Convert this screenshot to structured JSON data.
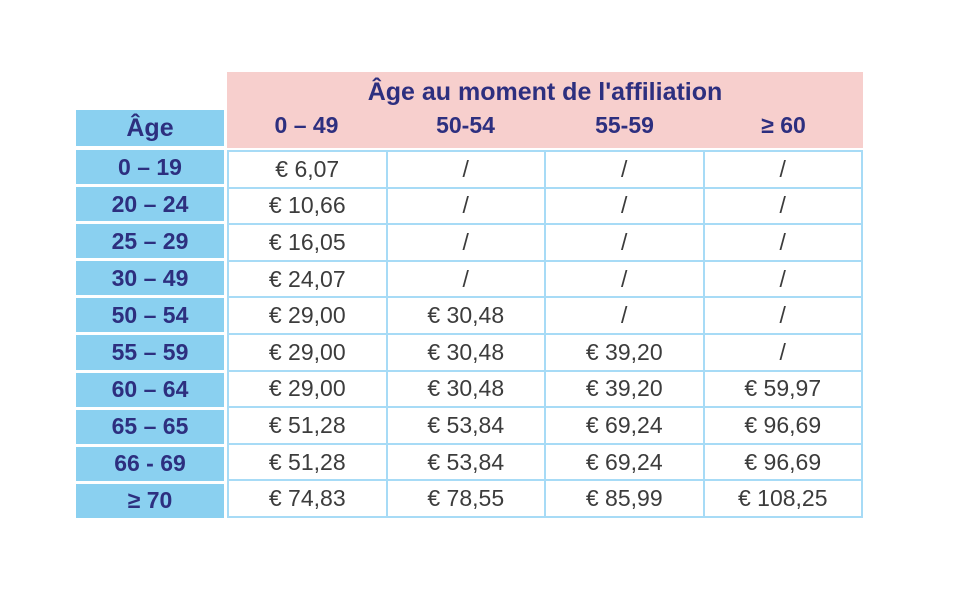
{
  "table": {
    "title": "Âge au moment de l'affiliation",
    "row_header_title": "Âge",
    "column_headers": [
      "0 – 49",
      "50-54",
      "55-59",
      "≥ 60"
    ],
    "rows": [
      {
        "age": "0 – 19",
        "values": [
          "€ 6,07",
          "/",
          "/",
          "/"
        ]
      },
      {
        "age": "20 – 24",
        "values": [
          "€ 10,66",
          "/",
          "/",
          "/"
        ]
      },
      {
        "age": "25 – 29",
        "values": [
          "€ 16,05",
          "/",
          "/",
          "/"
        ]
      },
      {
        "age": "30 – 49",
        "values": [
          "€ 24,07",
          "/",
          "/",
          "/"
        ]
      },
      {
        "age": "50 – 54",
        "values": [
          "€ 29,00",
          "€ 30,48",
          "/",
          "/"
        ]
      },
      {
        "age": "55 – 59",
        "values": [
          "€ 29,00",
          "€ 30,48",
          "€ 39,20",
          "/"
        ]
      },
      {
        "age": "60 – 64",
        "values": [
          "€ 29,00",
          "€ 30,48",
          "€ 39,20",
          "€ 59,97"
        ]
      },
      {
        "age": "65 – 65",
        "values": [
          "€ 51,28",
          "€ 53,84",
          "€ 69,24",
          "€ 96,69"
        ]
      },
      {
        "age": "66 - 69",
        "values": [
          "€ 51,28",
          "€ 53,84",
          "€ 69,24",
          "€ 96,69"
        ]
      },
      {
        "age": "≥ 70",
        "values": [
          "€ 74,83",
          "€ 78,55",
          "€ 85,99",
          "€ 108,25"
        ]
      }
    ],
    "colors": {
      "header_pink": "#f7cfcd",
      "age_blue": "#8ad0f0",
      "grid_line_blue": "#a7dbf6",
      "heading_navy": "#2d2f7f",
      "value_text": "#3c3c3c",
      "cell_background": "#ffffff"
    }
  }
}
